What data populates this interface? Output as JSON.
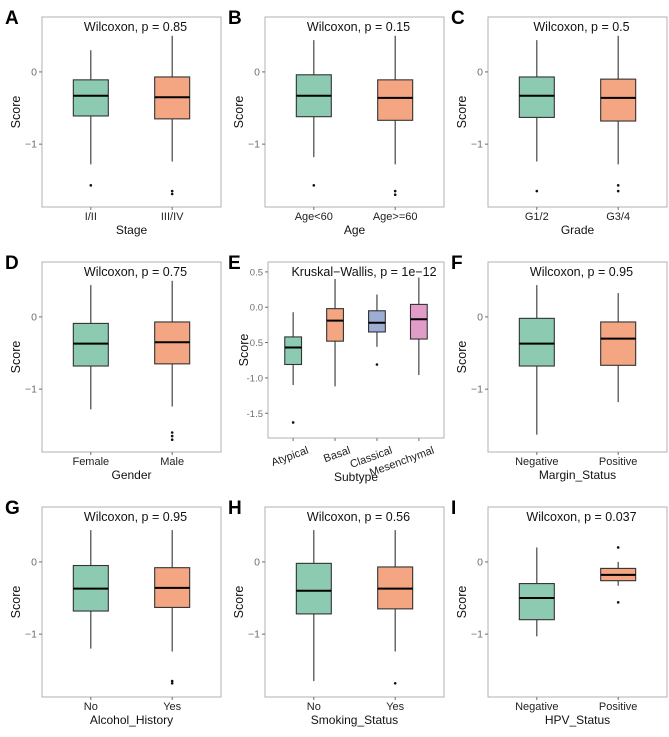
{
  "colors": {
    "teal": "#8ccab2",
    "orange": "#f4a582",
    "blue": "#9eadd2",
    "pink": "#e29cc8",
    "stroke": "#333333",
    "frame": "#b0b0b0",
    "tick": "#6e6e6e"
  },
  "chart_data": [
    {
      "type": "box",
      "panel": "A",
      "title": "Wilcoxon, p = 0.85",
      "xlabel": "Stage",
      "ylabel": "Score",
      "ylim": [
        -1.87,
        0.76
      ],
      "yticks": [
        {
          "v": 0,
          "label": "0"
        },
        {
          "v": -1,
          "label": "−1"
        }
      ],
      "categories": [
        "I/II",
        "III/IV"
      ],
      "fills": [
        "teal",
        "orange"
      ],
      "boxes": [
        {
          "whisker_high": 0.3,
          "q3": -0.11,
          "median": -0.33,
          "q1": -0.61,
          "whisker_low": -1.28,
          "outliers": [
            -1.57
          ]
        },
        {
          "whisker_high": 0.5,
          "q3": -0.07,
          "median": -0.35,
          "q1": -0.65,
          "whisker_low": -1.24,
          "outliers": [
            -1.65,
            -1.69
          ]
        }
      ]
    },
    {
      "type": "box",
      "panel": "B",
      "title": "Wilcoxon, p = 0.15",
      "xlabel": "Age",
      "ylabel": "Score",
      "ylim": [
        -1.87,
        0.76
      ],
      "yticks": [
        {
          "v": 0,
          "label": "0"
        },
        {
          "v": -1,
          "label": "−1"
        }
      ],
      "categories": [
        "Age<60",
        "Age>=60"
      ],
      "fills": [
        "teal",
        "orange"
      ],
      "boxes": [
        {
          "whisker_high": 0.44,
          "q3": -0.04,
          "median": -0.33,
          "q1": -0.62,
          "whisker_low": -1.18,
          "outliers": [
            -1.57
          ]
        },
        {
          "whisker_high": 0.5,
          "q3": -0.11,
          "median": -0.36,
          "q1": -0.67,
          "whisker_low": -1.28,
          "outliers": [
            -1.65,
            -1.7
          ]
        }
      ]
    },
    {
      "type": "box",
      "panel": "C",
      "title": "Wilcoxon, p = 0.5",
      "xlabel": "Grade",
      "ylabel": "Score",
      "ylim": [
        -1.87,
        0.76
      ],
      "yticks": [
        {
          "v": 0,
          "label": "0"
        },
        {
          "v": -1,
          "label": "−1"
        }
      ],
      "categories": [
        "G1/2",
        "G3/4"
      ],
      "fills": [
        "teal",
        "orange"
      ],
      "boxes": [
        {
          "whisker_high": 0.44,
          "q3": -0.07,
          "median": -0.33,
          "q1": -0.63,
          "whisker_low": -1.24,
          "outliers": [
            -1.65
          ]
        },
        {
          "whisker_high": 0.5,
          "q3": -0.1,
          "median": -0.36,
          "q1": -0.68,
          "whisker_low": -1.28,
          "outliers": [
            -1.57,
            -1.65
          ]
        }
      ]
    },
    {
      "type": "box",
      "panel": "D",
      "title": "Wilcoxon, p = 0.75",
      "xlabel": "Gender",
      "ylabel": "Score",
      "ylim": [
        -1.87,
        0.76
      ],
      "yticks": [
        {
          "v": 0,
          "label": "0"
        },
        {
          "v": -1,
          "label": "−1"
        }
      ],
      "categories": [
        "Female",
        "Male"
      ],
      "fills": [
        "teal",
        "orange"
      ],
      "boxes": [
        {
          "whisker_high": 0.44,
          "q3": -0.09,
          "median": -0.37,
          "q1": -0.68,
          "whisker_low": -1.28,
          "outliers": []
        },
        {
          "whisker_high": 0.5,
          "q3": -0.07,
          "median": -0.35,
          "q1": -0.65,
          "whisker_low": -1.24,
          "outliers": [
            -1.6,
            -1.65,
            -1.7
          ]
        }
      ]
    },
    {
      "type": "box",
      "panel": "E",
      "title": "Kruskal−Wallis, p = 1e−12",
      "xlabel": "Subtype",
      "ylabel": "Score",
      "ylim": [
        -1.85,
        0.64
      ],
      "yticks": [
        {
          "v": 0.5,
          "label": "0.5"
        },
        {
          "v": 0,
          "label": "0.0"
        },
        {
          "v": -0.5,
          "label": "-0.5"
        },
        {
          "v": -1,
          "label": "-1.0"
        },
        {
          "v": -1.5,
          "label": "-1.5"
        }
      ],
      "categories": [
        "Atypical",
        "Basal",
        "Classical",
        "Mesenchymal"
      ],
      "fills": [
        "teal",
        "orange",
        "blue",
        "pink"
      ],
      "rotated_xticks": true,
      "boxes": [
        {
          "whisker_high": -0.07,
          "q3": -0.42,
          "median": -0.57,
          "q1": -0.81,
          "whisker_low": -1.1,
          "outliers": [
            -1.63
          ]
        },
        {
          "whisker_high": 0.4,
          "q3": -0.02,
          "median": -0.19,
          "q1": -0.48,
          "whisker_low": -1.12,
          "outliers": []
        },
        {
          "whisker_high": 0.18,
          "q3": -0.05,
          "median": -0.22,
          "q1": -0.35,
          "whisker_low": -0.56,
          "outliers": [
            -0.81
          ]
        },
        {
          "whisker_high": 0.42,
          "q3": 0.04,
          "median": -0.17,
          "q1": -0.45,
          "whisker_low": -0.96,
          "outliers": []
        }
      ]
    },
    {
      "type": "box",
      "panel": "F",
      "title": "Wilcoxon, p = 0.95",
      "xlabel": "Margin_Status",
      "ylabel": "Score",
      "ylim": [
        -1.87,
        0.76
      ],
      "yticks": [
        {
          "v": 0,
          "label": "0"
        },
        {
          "v": -1,
          "label": "−1"
        }
      ],
      "categories": [
        "Negative",
        "Positive"
      ],
      "fills": [
        "teal",
        "orange"
      ],
      "boxes": [
        {
          "whisker_high": 0.44,
          "q3": -0.02,
          "median": -0.37,
          "q1": -0.68,
          "whisker_low": -1.63,
          "outliers": []
        },
        {
          "whisker_high": 0.33,
          "q3": -0.07,
          "median": -0.3,
          "q1": -0.67,
          "whisker_low": -1.18,
          "outliers": []
        }
      ]
    },
    {
      "type": "box",
      "panel": "G",
      "title": "Wilcoxon, p = 0.95",
      "xlabel": "Alcohol_History",
      "ylabel": "Score",
      "ylim": [
        -1.87,
        0.76
      ],
      "yticks": [
        {
          "v": 0,
          "label": "0"
        },
        {
          "v": -1,
          "label": "−1"
        }
      ],
      "categories": [
        "No",
        "Yes"
      ],
      "fills": [
        "teal",
        "orange"
      ],
      "boxes": [
        {
          "whisker_high": 0.44,
          "q3": -0.05,
          "median": -0.37,
          "q1": -0.68,
          "whisker_low": -1.2,
          "outliers": []
        },
        {
          "whisker_high": 0.44,
          "q3": -0.08,
          "median": -0.36,
          "q1": -0.63,
          "whisker_low": -1.24,
          "outliers": [
            -1.65,
            -1.68
          ]
        }
      ]
    },
    {
      "type": "box",
      "panel": "H",
      "title": "Wilcoxon, p = 0.56",
      "xlabel": "Smoking_Status",
      "ylabel": "Score",
      "ylim": [
        -1.87,
        0.76
      ],
      "yticks": [
        {
          "v": 0,
          "label": "0"
        },
        {
          "v": -1,
          "label": "−1"
        }
      ],
      "categories": [
        "No",
        "Yes"
      ],
      "fills": [
        "teal",
        "orange"
      ],
      "boxes": [
        {
          "whisker_high": 0.44,
          "q3": -0.02,
          "median": -0.4,
          "q1": -0.72,
          "whisker_low": -1.65,
          "outliers": []
        },
        {
          "whisker_high": 0.44,
          "q3": -0.07,
          "median": -0.37,
          "q1": -0.65,
          "whisker_low": -1.24,
          "outliers": [
            -1.68
          ]
        }
      ]
    },
    {
      "type": "box",
      "panel": "I",
      "title": "Wilcoxon, p = 0.037",
      "xlabel": "HPV_Status",
      "ylabel": "Score",
      "ylim": [
        -1.87,
        0.76
      ],
      "yticks": [
        {
          "v": 0,
          "label": "0"
        },
        {
          "v": -1,
          "label": "−1"
        }
      ],
      "categories": [
        "Negative",
        "Positive"
      ],
      "fills": [
        "teal",
        "orange"
      ],
      "boxes": [
        {
          "whisker_high": 0.2,
          "q3": -0.3,
          "median": -0.5,
          "q1": -0.8,
          "whisker_low": -1.03,
          "outliers": []
        },
        {
          "whisker_high": 0.0,
          "q3": -0.09,
          "median": -0.18,
          "q1": -0.26,
          "whisker_low": -0.33,
          "outliers": [
            0.2,
            -0.56
          ]
        }
      ]
    }
  ]
}
